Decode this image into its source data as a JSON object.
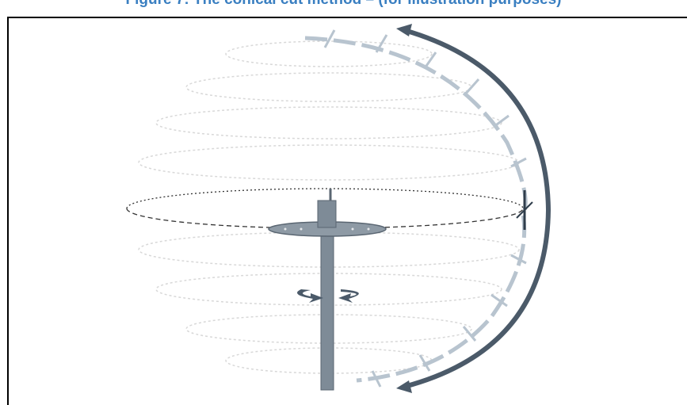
{
  "caption": "Figure 7: The conical cut method – (for illustration purposes)"
}
